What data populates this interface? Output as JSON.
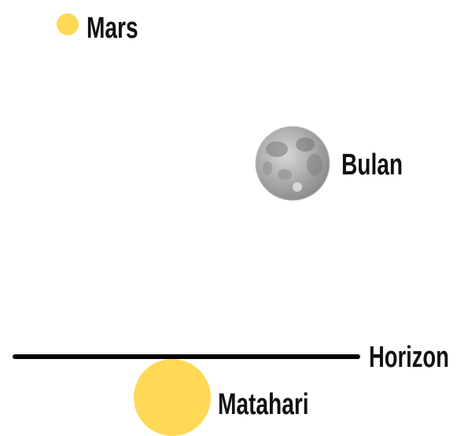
{
  "labels": {
    "mars": "Mars",
    "moon": "Bulan",
    "horizon": "Horizon",
    "sun": "Matahari"
  }
}
